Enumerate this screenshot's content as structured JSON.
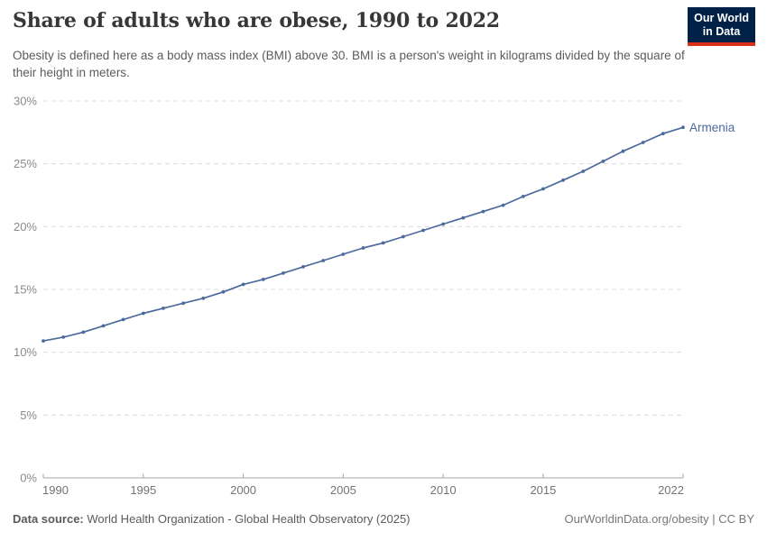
{
  "header": {
    "title": "Share of adults who are obese, 1990 to 2022",
    "subtitle": "Obesity is defined here as a body mass index (BMI) above 30. BMI is a person's weight in kilograms divided by the square of their height in meters.",
    "logo": {
      "line1": "Our World",
      "line2": "in Data",
      "bg_color": "#002147",
      "stripe_color": "#dc3119"
    }
  },
  "footer": {
    "datasource_label": "Data source:",
    "datasource_text": " World Health Organization - Global Health Observatory (2025)",
    "credit": "OurWorldinData.org/obesity | CC BY"
  },
  "chart_data": {
    "type": "line",
    "title": "Share of adults who are obese, 1990 to 2022",
    "xlabel": "",
    "ylabel": "",
    "xlim": [
      1990,
      2022
    ],
    "ylim": [
      0,
      30
    ],
    "x_ticks": [
      1990,
      1995,
      2000,
      2005,
      2010,
      2015,
      2022
    ],
    "y_ticks": [
      0,
      5,
      10,
      15,
      20,
      25,
      30
    ],
    "y_tick_suffix": "%",
    "grid": "horizontal-dashed",
    "legend_position": "end-of-line-label",
    "colors": {
      "line": "#4c6a9c",
      "gridline": "#dcdcdc",
      "axis": "#a5a5a5",
      "x_tick_label": "#737373",
      "y_tick_label": "#8a8a8a"
    },
    "series": [
      {
        "name": "Armenia",
        "color": "#4c6a9c",
        "x": [
          1990,
          1991,
          1992,
          1993,
          1994,
          1995,
          1996,
          1997,
          1998,
          1999,
          2000,
          2001,
          2002,
          2003,
          2004,
          2005,
          2006,
          2007,
          2008,
          2009,
          2010,
          2011,
          2012,
          2013,
          2014,
          2015,
          2016,
          2017,
          2018,
          2019,
          2020,
          2021,
          2022
        ],
        "values": [
          10.9,
          11.2,
          11.6,
          12.1,
          12.6,
          13.1,
          13.5,
          13.9,
          14.3,
          14.8,
          15.4,
          15.8,
          16.3,
          16.8,
          17.3,
          17.8,
          18.3,
          18.7,
          19.2,
          19.7,
          20.2,
          20.7,
          21.2,
          21.7,
          22.4,
          23.0,
          23.7,
          24.4,
          25.2,
          26.0,
          26.7,
          27.4,
          27.9
        ]
      }
    ]
  }
}
